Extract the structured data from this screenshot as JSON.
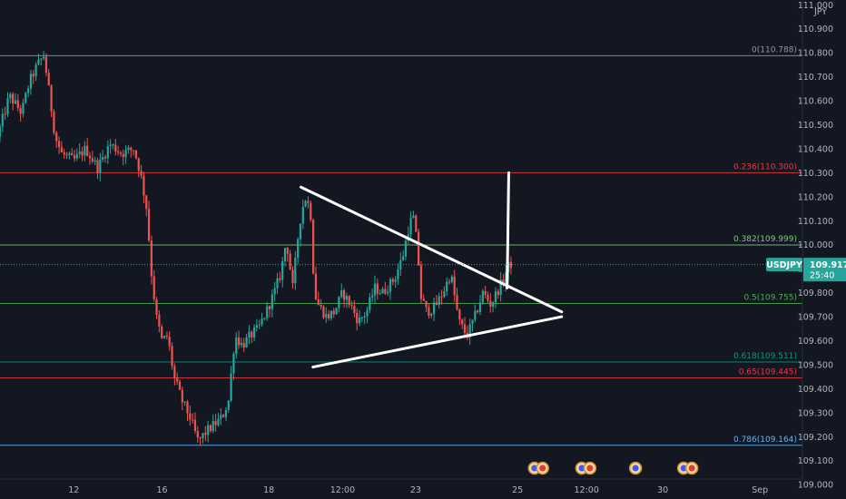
{
  "chart_data": {
    "type": "candlestick",
    "symbol": "USDJPY",
    "y_axis": {
      "unit": "JPY",
      "range": [
        108.94,
        111.02
      ],
      "ticks": [
        "111.000",
        "110.900",
        "110.800",
        "110.700",
        "110.600",
        "110.500",
        "110.400",
        "110.300",
        "110.200",
        "110.100",
        "110.000",
        "109.900",
        "109.800",
        "109.700",
        "109.600",
        "109.500",
        "109.400",
        "109.300",
        "109.200",
        "109.100",
        "109.000"
      ],
      "tick_values": [
        111.0,
        110.9,
        110.8,
        110.7,
        110.6,
        110.5,
        110.4,
        110.3,
        110.2,
        110.1,
        110.0,
        109.9,
        109.8,
        109.7,
        109.6,
        109.5,
        109.4,
        109.3,
        109.2,
        109.1,
        109.0
      ]
    },
    "x_axis": {
      "range": [
        0,
        100
      ],
      "ticks": [
        {
          "label": "12",
          "x": 9.2
        },
        {
          "label": "16",
          "x": 20.2
        },
        {
          "label": "18",
          "x": 33.5
        },
        {
          "label": "12:00",
          "x": 42.7
        },
        {
          "label": "23",
          "x": 51.8
        },
        {
          "label": "25",
          "x": 64.5
        },
        {
          "label": "12:00",
          "x": 73.1
        },
        {
          "label": "30",
          "x": 82.6
        },
        {
          "label": "Sep",
          "x": 94.7
        }
      ]
    },
    "fib_levels": [
      {
        "label": "0(110.788)",
        "value": 110.788,
        "color": "#9598a1"
      },
      {
        "label": "0.236(110.300)",
        "value": 110.3,
        "color": "#f23645"
      },
      {
        "label": "0.382(109.999)",
        "value": 109.999,
        "color": "#81c784"
      },
      {
        "label": "0.5(109.755)",
        "value": 109.755,
        "color": "#4caf50"
      },
      {
        "label": "0.618(109.511)",
        "value": 109.511,
        "color": "#089981"
      },
      {
        "label": "0.65(109.445)",
        "value": 109.445,
        "color": "#f23645"
      },
      {
        "label": "0.786(109.164)",
        "value": 109.164,
        "color": "#64b5f6"
      }
    ],
    "current_price": {
      "symbol": "USDJPY",
      "value": "109.917",
      "countdown": "25:40",
      "price": 109.917,
      "color": "#26a69a"
    },
    "price_path": [
      [
        0.0,
        110.45
      ],
      [
        1.5,
        110.62
      ],
      [
        3.0,
        110.55
      ],
      [
        4.0,
        110.68
      ],
      [
        5.0,
        110.75
      ],
      [
        5.8,
        110.79
      ],
      [
        6.5,
        110.62
      ],
      [
        7.2,
        110.45
      ],
      [
        8.0,
        110.38
      ],
      [
        9.5,
        110.35
      ],
      [
        11.0,
        110.4
      ],
      [
        12.5,
        110.32
      ],
      [
        14.0,
        110.42
      ],
      [
        15.5,
        110.38
      ],
      [
        17.0,
        110.4
      ],
      [
        17.8,
        110.3
      ],
      [
        18.6,
        110.15
      ],
      [
        19.2,
        109.88
      ],
      [
        19.8,
        109.7
      ],
      [
        20.5,
        109.6
      ],
      [
        21.2,
        109.62
      ],
      [
        22.0,
        109.45
      ],
      [
        23.0,
        109.35
      ],
      [
        24.0,
        109.28
      ],
      [
        25.0,
        109.18
      ],
      [
        26.0,
        109.22
      ],
      [
        27.0,
        109.25
      ],
      [
        28.0,
        109.28
      ],
      [
        28.8,
        109.35
      ],
      [
        29.6,
        109.62
      ],
      [
        30.5,
        109.58
      ],
      [
        31.5,
        109.62
      ],
      [
        32.5,
        109.65
      ],
      [
        33.5,
        109.72
      ],
      [
        34.5,
        109.8
      ],
      [
        35.3,
        109.88
      ],
      [
        36.0,
        110.02
      ],
      [
        36.8,
        109.82
      ],
      [
        37.6,
        110.08
      ],
      [
        38.3,
        110.2
      ],
      [
        39.0,
        110.15
      ],
      [
        39.5,
        109.8
      ],
      [
        40.0,
        109.75
      ],
      [
        41.0,
        109.7
      ],
      [
        42.0,
        109.72
      ],
      [
        43.0,
        109.8
      ],
      [
        44.0,
        109.75
      ],
      [
        45.0,
        109.68
      ],
      [
        46.0,
        109.72
      ],
      [
        47.0,
        109.82
      ],
      [
        48.0,
        109.8
      ],
      [
        49.5,
        109.86
      ],
      [
        50.5,
        109.95
      ],
      [
        51.3,
        110.08
      ],
      [
        51.8,
        110.12
      ],
      [
        52.3,
        110.0
      ],
      [
        52.8,
        109.78
      ],
      [
        53.5,
        109.72
      ],
      [
        54.5,
        109.74
      ],
      [
        55.5,
        109.8
      ],
      [
        56.5,
        109.88
      ],
      [
        57.5,
        109.68
      ],
      [
        58.5,
        109.62
      ],
      [
        59.5,
        109.7
      ],
      [
        60.5,
        109.8
      ],
      [
        61.5,
        109.75
      ],
      [
        62.5,
        109.82
      ],
      [
        63.0,
        109.85
      ],
      [
        63.5,
        109.9
      ],
      [
        63.9,
        109.92
      ]
    ],
    "triangle": {
      "upper": [
        [
          37.5,
          110.24
        ],
        [
          70.0,
          109.72
        ]
      ],
      "lower": [
        [
          39.0,
          109.49
        ],
        [
          70.0,
          109.7
        ]
      ],
      "breakout": [
        [
          63.2,
          109.82
        ],
        [
          63.4,
          110.3
        ]
      ]
    },
    "event_markers": [
      {
        "label": "USD flag",
        "color": "#3d5afe"
      },
      {
        "label": "JPY flag",
        "color": "#e53935"
      },
      {
        "label": "USD flag",
        "color": "#3d5afe"
      },
      {
        "label": "JPY flag",
        "color": "#e53935"
      },
      {
        "label": "USD flag",
        "color": "#3d5afe"
      },
      {
        "label": "USD flag",
        "color": "#3d5afe"
      },
      {
        "label": "JPY flag",
        "color": "#e53935"
      }
    ],
    "colors": {
      "background": "#131722",
      "up": "#26a69a",
      "down": "#ef5350",
      "text": "#b2b5be",
      "drawing": "#ffffff"
    }
  }
}
